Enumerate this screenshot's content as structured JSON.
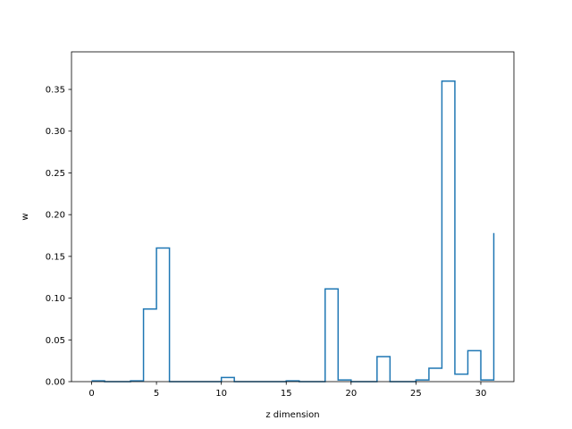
{
  "chart_data": {
    "type": "line",
    "style": "step-post",
    "title": "",
    "xlabel": "z dimension",
    "ylabel": "w",
    "xlim": [
      -1.55,
      32.55
    ],
    "ylim": [
      0,
      0.395
    ],
    "grid": false,
    "legend": null,
    "color": "#1f77b4",
    "x_ticks": [
      0,
      5,
      10,
      15,
      20,
      25,
      30
    ],
    "x_tick_labels": [
      "0",
      "5",
      "10",
      "15",
      "20",
      "25",
      "30"
    ],
    "y_ticks": [
      0.0,
      0.05,
      0.1,
      0.15,
      0.2,
      0.25,
      0.3,
      0.35
    ],
    "y_tick_labels": [
      "0.00",
      "0.05",
      "0.10",
      "0.15",
      "0.20",
      "0.25",
      "0.30",
      "0.35"
    ],
    "x": [
      0,
      1,
      2,
      3,
      4,
      5,
      6,
      7,
      8,
      9,
      10,
      11,
      12,
      13,
      14,
      15,
      16,
      17,
      18,
      19,
      20,
      21,
      22,
      23,
      24,
      25,
      26,
      27,
      28,
      29,
      30,
      31
    ],
    "values": [
      0.001,
      0.0,
      0.0,
      0.001,
      0.087,
      0.16,
      0.0,
      0.0,
      0.0,
      0.0,
      0.005,
      0.0,
      0.0,
      0.0,
      0.0,
      0.001,
      0.0,
      0.0,
      0.111,
      0.002,
      0.0,
      0.0,
      0.03,
      0.0,
      0.0,
      0.002,
      0.016,
      0.36,
      0.009,
      0.037,
      0.002,
      0.178
    ]
  }
}
